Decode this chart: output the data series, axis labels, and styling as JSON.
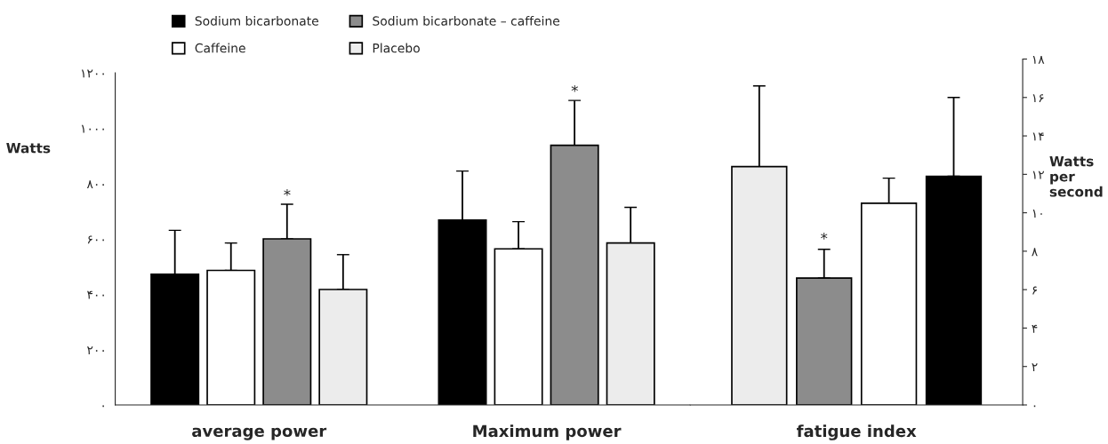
{
  "chart_data": [
    {
      "type": "bar",
      "categories": [
        "average power",
        "Maximum power"
      ],
      "ylabel": "Watts",
      "ylim": [
        0,
        1200
      ],
      "yticks": [
        {
          "value": 0,
          "label": "۰"
        },
        {
          "value": 200,
          "label": "۲۰۰"
        },
        {
          "value": 400,
          "label": "۴۰۰"
        },
        {
          "value": 600,
          "label": "۶۰۰"
        },
        {
          "value": 800,
          "label": "۸۰۰"
        },
        {
          "value": 1000,
          "label": "۱۰۰۰"
        },
        {
          "value": 1200,
          "label": "۱۲۰۰"
        }
      ],
      "series": [
        {
          "name": "Sodium bicarbonate",
          "color": "#000000",
          "values": [
            472,
            668
          ],
          "errors": [
            [
              472,
              631
            ],
            [
              668,
              845
            ]
          ]
        },
        {
          "name": "Caffeine",
          "color": "#ffffff",
          "values": [
            486,
            564
          ],
          "errors": [
            [
              486,
              585
            ],
            [
              564,
              662
            ]
          ]
        },
        {
          "name": "Sodium bicarbonate – caffeine",
          "color": "#8c8c8c",
          "values": [
            600,
            938
          ],
          "errors": [
            [
              600,
              725
            ],
            [
              938,
              1100
            ]
          ]
        },
        {
          "name": "Placebo",
          "color": "#ececec",
          "values": [
            417,
            585
          ],
          "errors": [
            [
              417,
              543
            ],
            [
              585,
              714
            ]
          ]
        }
      ],
      "annotations": [
        "*",
        "*"
      ],
      "legend": "top",
      "grid": false
    },
    {
      "type": "bar",
      "categories": [
        "fatigue index"
      ],
      "ylabel": "Watts\nper\nsecond",
      "ylim": [
        0,
        18
      ],
      "yticks": [
        {
          "value": 0,
          "label": "۰"
        },
        {
          "value": 2,
          "label": "۲"
        },
        {
          "value": 4,
          "label": "۴"
        },
        {
          "value": 6,
          "label": "۶"
        },
        {
          "value": 8,
          "label": "۸"
        },
        {
          "value": 10,
          "label": "۱۰"
        },
        {
          "value": 12,
          "label": "۱۲"
        },
        {
          "value": 14,
          "label": "۱۴"
        },
        {
          "value": 16,
          "label": "۱۶"
        },
        {
          "value": 18,
          "label": "۱۸"
        }
      ],
      "series": [
        {
          "color": "#ececec",
          "values": [
            12.4
          ],
          "errors": [
            [
              12.4,
              16.6
            ]
          ]
        },
        {
          "color": "#8c8c8c",
          "values": [
            6.6
          ],
          "errors": [
            [
              6.6,
              8.1
            ]
          ]
        },
        {
          "color": "#ffffff",
          "values": [
            10.5
          ],
          "errors": [
            [
              10.5,
              11.8
            ]
          ]
        },
        {
          "color": "#000000",
          "values": [
            11.9
          ],
          "errors": [
            [
              11.9,
              16.0
            ]
          ]
        }
      ],
      "annotations": [
        "*"
      ],
      "grid": false
    }
  ]
}
